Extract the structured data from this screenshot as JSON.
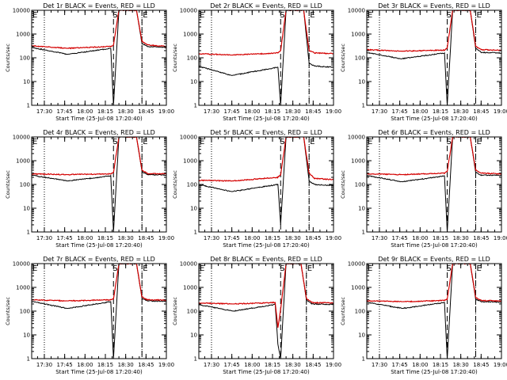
{
  "chart_data": [
    {
      "type": "line",
      "title": "Det 1r BLACK = Events, RED = LLD",
      "xlabel": "Start Time (25-Jul-08 17:20:40)",
      "ylabel": "Counts/sec",
      "yscale": "log",
      "xlim": [
        "17:20:40",
        "19:00:00"
      ],
      "ylim": [
        1,
        10000
      ],
      "x_ticks": [
        "17:30",
        "17:45",
        "18:00",
        "18:15",
        "18:30",
        "18:45",
        "19:00"
      ],
      "y_ticks": [
        "1",
        "10",
        "100",
        "1000",
        "10000"
      ],
      "lld_level": 320,
      "events_level": 280,
      "dip_time": "17:47",
      "saa_start": "18:21",
      "saa_end": "18:42",
      "frame_markers": [
        "S",
        "E"
      ],
      "dotted_lines": [
        "17:30",
        "18:42"
      ],
      "dashed_lines": [
        "18:21",
        "18:42"
      ],
      "series": [
        {
          "name": "Events",
          "color": "#000000",
          "x": [
            "17:20",
            "17:47",
            "18:19",
            "18:21",
            "18:25",
            "18:38",
            "18:42",
            "18:46",
            "19:00"
          ],
          "y": [
            280,
            140,
            250,
            1,
            10000,
            10000,
            400,
            300,
            270
          ]
        },
        {
          "name": "LLD",
          "color": "#d40000",
          "x": [
            "17:20",
            "17:47",
            "18:19",
            "18:21",
            "18:25",
            "18:38",
            "18:42",
            "18:46",
            "19:00"
          ],
          "y": [
            320,
            250,
            300,
            350,
            10000,
            10000,
            500,
            350,
            300
          ]
        }
      ]
    },
    {
      "type": "line",
      "title": "Det 2r BLACK = Events, RED = LLD",
      "xlabel": "Start Time (25-Jul-08 17:20:40)",
      "ylabel": "Counts/sec",
      "yscale": "log",
      "xlim": [
        "17:20:40",
        "19:00:00"
      ],
      "ylim": [
        1,
        10000
      ],
      "x_ticks": [
        "17:30",
        "17:45",
        "18:00",
        "18:15",
        "18:30",
        "18:45",
        "19:00"
      ],
      "y_ticks": [
        "1",
        "10",
        "100",
        "1000",
        "10000"
      ],
      "lld_level": 150,
      "events_level": 45,
      "dip_time": "17:45",
      "saa_start": "18:21",
      "saa_end": "18:42",
      "frame_markers": [
        "S",
        "E"
      ],
      "dotted_lines": [
        "17:30",
        "18:42"
      ],
      "dashed_lines": [
        "18:21",
        "18:42"
      ],
      "series": [
        {
          "name": "Events",
          "color": "#000000",
          "x": [
            "17:20",
            "17:45",
            "18:19",
            "18:21",
            "18:25",
            "18:38",
            "18:42",
            "18:46",
            "19:00"
          ],
          "y": [
            45,
            18,
            40,
            1,
            10000,
            10000,
            60,
            45,
            40
          ]
        },
        {
          "name": "LLD",
          "color": "#d40000",
          "x": [
            "17:20",
            "17:45",
            "18:19",
            "18:21",
            "18:25",
            "18:38",
            "18:42",
            "18:46",
            "19:00"
          ],
          "y": [
            150,
            130,
            160,
            200,
            10000,
            10000,
            200,
            160,
            150
          ]
        }
      ]
    },
    {
      "type": "line",
      "title": "Det 3r BLACK = Events, RED = LLD",
      "xlabel": "Start Time (25-Jul-08 17:20:40)",
      "ylabel": "Counts/sec",
      "yscale": "log",
      "xlim": [
        "17:20:40",
        "19:00:00"
      ],
      "ylim": [
        1,
        10000
      ],
      "x_ticks": [
        "17:30",
        "17:45",
        "18:00",
        "18:15",
        "18:30",
        "18:45",
        "19:00"
      ],
      "y_ticks": [
        "1",
        "10",
        "100",
        "1000",
        "10000"
      ],
      "lld_level": 220,
      "events_level": 170,
      "dip_time": "17:46",
      "saa_start": "18:20",
      "saa_end": "18:41",
      "frame_markers": [
        "S",
        "E"
      ],
      "dotted_lines": [
        "17:30",
        "18:41"
      ],
      "dashed_lines": [
        "18:20",
        "18:41"
      ],
      "series": [
        {
          "name": "Events",
          "color": "#000000",
          "x": [
            "17:20",
            "17:46",
            "18:18",
            "18:20",
            "18:24",
            "18:37",
            "18:41",
            "18:45",
            "19:00"
          ],
          "y": [
            170,
            90,
            160,
            1,
            10000,
            10000,
            250,
            170,
            160
          ]
        },
        {
          "name": "LLD",
          "color": "#d40000",
          "x": [
            "17:20",
            "17:46",
            "18:18",
            "18:20",
            "18:24",
            "18:37",
            "18:41",
            "18:45",
            "19:00"
          ],
          "y": [
            220,
            190,
            210,
            260,
            10000,
            10000,
            300,
            220,
            210
          ]
        }
      ]
    },
    {
      "type": "line",
      "title": "Det 4r BLACK = Events, RED = LLD",
      "xlabel": "Start Time (25-Jul-08 17:20:40)",
      "ylabel": "Counts/sec",
      "yscale": "log",
      "xlim": [
        "17:20:40",
        "19:00:00"
      ],
      "ylim": [
        1,
        10000
      ],
      "x_ticks": [
        "17:30",
        "17:45",
        "18:00",
        "18:15",
        "18:30",
        "18:45",
        "19:00"
      ],
      "y_ticks": [
        "1",
        "10",
        "100",
        "1000",
        "10000"
      ],
      "lld_level": 280,
      "events_level": 250,
      "dip_time": "17:47",
      "saa_start": "18:21",
      "saa_end": "18:42",
      "frame_markers": [
        "S",
        "E"
      ],
      "dotted_lines": [
        "17:30",
        "18:42"
      ],
      "dashed_lines": [
        "18:21",
        "18:42"
      ],
      "series": [
        {
          "name": "Events",
          "color": "#000000",
          "x": [
            "17:20",
            "17:47",
            "18:19",
            "18:21",
            "18:25",
            "18:38",
            "18:42",
            "18:46",
            "19:00"
          ],
          "y": [
            250,
            140,
            230,
            1,
            10000,
            10000,
            350,
            260,
            250
          ]
        },
        {
          "name": "LLD",
          "color": "#d40000",
          "x": [
            "17:20",
            "17:47",
            "18:19",
            "18:21",
            "18:25",
            "18:38",
            "18:42",
            "18:46",
            "19:00"
          ],
          "y": [
            280,
            260,
            280,
            320,
            10000,
            10000,
            400,
            290,
            280
          ]
        }
      ]
    },
    {
      "type": "line",
      "title": "Det 5r BLACK = Events, RED = LLD",
      "xlabel": "Start Time (25-Jul-08 17:20:40)",
      "ylabel": "Counts/sec",
      "yscale": "log",
      "xlim": [
        "17:20:40",
        "19:00:00"
      ],
      "ylim": [
        1,
        10000
      ],
      "x_ticks": [
        "17:30",
        "17:45",
        "18:00",
        "18:15",
        "18:30",
        "18:45",
        "19:00"
      ],
      "y_ticks": [
        "1",
        "10",
        "100",
        "1000",
        "10000"
      ],
      "lld_level": 150,
      "events_level": 100,
      "dip_time": "17:45",
      "saa_start": "18:21",
      "saa_end": "18:42",
      "frame_markers": [
        "S",
        "E"
      ],
      "dotted_lines": [
        "17:30",
        "18:42"
      ],
      "dashed_lines": [
        "18:21",
        "18:42"
      ],
      "series": [
        {
          "name": "Events",
          "color": "#000000",
          "x": [
            "17:20",
            "17:45",
            "18:19",
            "18:21",
            "18:25",
            "18:38",
            "18:42",
            "18:46",
            "19:00"
          ],
          "y": [
            100,
            50,
            100,
            2,
            10000,
            10000,
            140,
            100,
            90
          ]
        },
        {
          "name": "LLD",
          "color": "#d40000",
          "x": [
            "17:20",
            "17:45",
            "18:19",
            "18:21",
            "18:25",
            "18:38",
            "18:42",
            "18:46",
            "19:00"
          ],
          "y": [
            150,
            140,
            200,
            250,
            10000,
            10000,
            300,
            180,
            160
          ]
        }
      ]
    },
    {
      "type": "line",
      "title": "Det 6r BLACK = Events, RED = LLD",
      "xlabel": "Start Time (25-Jul-08 17:20:40)",
      "ylabel": "Counts/sec",
      "yscale": "log",
      "xlim": [
        "17:20:40",
        "19:00:00"
      ],
      "ylim": [
        1,
        10000
      ],
      "x_ticks": [
        "17:30",
        "17:45",
        "18:00",
        "18:15",
        "18:30",
        "18:45",
        "19:00"
      ],
      "y_ticks": [
        "1",
        "10",
        "100",
        "1000",
        "10000"
      ],
      "lld_level": 280,
      "events_level": 240,
      "dip_time": "17:47",
      "saa_start": "18:20",
      "saa_end": "18:41",
      "frame_markers": [
        "S",
        "E"
      ],
      "dotted_lines": [
        "17:30",
        "18:41"
      ],
      "dashed_lines": [
        "18:20",
        "18:41"
      ],
      "series": [
        {
          "name": "Events",
          "color": "#000000",
          "x": [
            "17:20",
            "17:47",
            "18:18",
            "18:20",
            "18:24",
            "18:37",
            "18:41",
            "18:45",
            "19:00"
          ],
          "y": [
            240,
            130,
            230,
            1,
            10000,
            10000,
            320,
            250,
            240
          ]
        },
        {
          "name": "LLD",
          "color": "#d40000",
          "x": [
            "17:20",
            "17:47",
            "18:18",
            "18:20",
            "18:24",
            "18:37",
            "18:41",
            "18:45",
            "19:00"
          ],
          "y": [
            280,
            260,
            300,
            350,
            10000,
            10000,
            400,
            300,
            280
          ]
        }
      ]
    },
    {
      "type": "line",
      "title": "Det 7r BLACK = Events, RED = LLD",
      "xlabel": "Start Time (25-Jul-08 17:20:40)",
      "ylabel": "Counts/sec",
      "yscale": "log",
      "xlim": [
        "17:20:40",
        "19:00:00"
      ],
      "ylim": [
        1,
        10000
      ],
      "x_ticks": [
        "17:30",
        "17:45",
        "18:00",
        "18:15",
        "18:30",
        "18:45",
        "19:00"
      ],
      "y_ticks": [
        "1",
        "10",
        "100",
        "1000",
        "10000"
      ],
      "lld_level": 300,
      "events_level": 260,
      "dip_time": "17:47",
      "saa_start": "18:21",
      "saa_end": "18:42",
      "frame_markers": [
        "S",
        "E"
      ],
      "dotted_lines": [
        "17:30",
        "18:42"
      ],
      "dashed_lines": [
        "18:21",
        "18:42"
      ],
      "series": [
        {
          "name": "Events",
          "color": "#000000",
          "x": [
            "17:20",
            "17:47",
            "18:19",
            "18:21",
            "18:25",
            "18:38",
            "18:42",
            "18:46",
            "19:00"
          ],
          "y": [
            260,
            130,
            250,
            1,
            10000,
            10000,
            350,
            270,
            260
          ]
        },
        {
          "name": "LLD",
          "color": "#d40000",
          "x": [
            "17:20",
            "17:47",
            "18:19",
            "18:21",
            "18:25",
            "18:38",
            "18:42",
            "18:46",
            "19:00"
          ],
          "y": [
            300,
            270,
            300,
            330,
            10000,
            10000,
            400,
            300,
            290
          ]
        }
      ]
    },
    {
      "type": "line",
      "title": "Det 8r BLACK = Events, RED = LLD",
      "xlabel": "Start Time (25-Jul-08 17:20:40)",
      "ylabel": "Counts/sec",
      "yscale": "log",
      "xlim": [
        "17:20:40",
        "19:00:00"
      ],
      "ylim": [
        1,
        10000
      ],
      "x_ticks": [
        "17:30",
        "17:45",
        "18:00",
        "18:15",
        "18:30",
        "18:45",
        "19:00"
      ],
      "y_ticks": [
        "1",
        "10",
        "100",
        "1000",
        "10000"
      ],
      "lld_level": 220,
      "events_level": 190,
      "dip_time": "17:46",
      "saa_start": "18:21",
      "saa_end": "18:40",
      "frame_markers": [
        "S",
        "E"
      ],
      "dotted_lines": [
        "17:30",
        "18:40"
      ],
      "dashed_lines": [
        "18:21",
        "18:40"
      ],
      "series": [
        {
          "name": "Events",
          "color": "#000000",
          "x": [
            "17:20",
            "17:46",
            "18:17",
            "18:19",
            "18:21",
            "18:25",
            "18:36",
            "18:40",
            "18:44",
            "19:00"
          ],
          "y": [
            190,
            100,
            190,
            4,
            1,
            10000,
            10000,
            300,
            200,
            190
          ]
        },
        {
          "name": "LLD",
          "color": "#d40000",
          "x": [
            "17:20",
            "17:46",
            "18:17",
            "18:19",
            "18:21",
            "18:25",
            "18:36",
            "18:40",
            "18:44",
            "19:00"
          ],
          "y": [
            220,
            200,
            230,
            20,
            120,
            10000,
            10000,
            350,
            230,
            220
          ]
        }
      ]
    },
    {
      "type": "line",
      "title": "Det 9r BLACK = Events, RED = LLD",
      "xlabel": "Start Time (25-Jul-08 17:20:40)",
      "ylabel": "Counts/sec",
      "yscale": "log",
      "xlim": [
        "17:20:40",
        "19:00:00"
      ],
      "ylim": [
        1,
        10000
      ],
      "x_ticks": [
        "17:30",
        "17:45",
        "18:00",
        "18:15",
        "18:30",
        "18:45",
        "19:00"
      ],
      "y_ticks": [
        "1",
        "10",
        "100",
        "1000",
        "10000"
      ],
      "lld_level": 270,
      "events_level": 240,
      "dip_time": "17:47",
      "saa_start": "18:20",
      "saa_end": "18:41",
      "frame_markers": [
        "S",
        "E"
      ],
      "dotted_lines": [
        "17:30",
        "18:41"
      ],
      "dashed_lines": [
        "18:20",
        "18:41"
      ],
      "series": [
        {
          "name": "Events",
          "color": "#000000",
          "x": [
            "17:20",
            "17:47",
            "18:18",
            "18:20",
            "18:24",
            "18:37",
            "18:41",
            "18:45",
            "19:00"
          ],
          "y": [
            240,
            130,
            230,
            1,
            10000,
            10000,
            320,
            250,
            240
          ]
        },
        {
          "name": "LLD",
          "color": "#d40000",
          "x": [
            "17:20",
            "17:47",
            "18:18",
            "18:20",
            "18:24",
            "18:37",
            "18:41",
            "18:45",
            "19:00"
          ],
          "y": [
            270,
            250,
            280,
            320,
            10000,
            10000,
            380,
            280,
            270
          ]
        }
      ]
    }
  ]
}
